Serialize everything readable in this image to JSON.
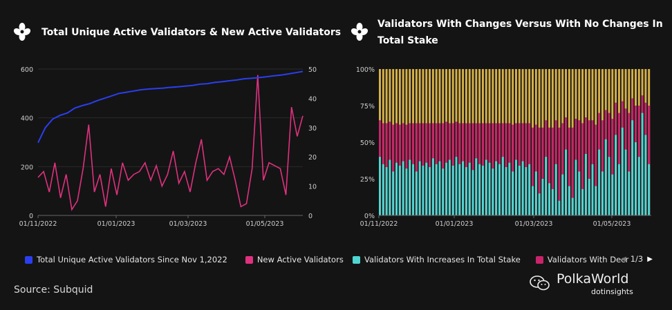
{
  "panels": [
    {
      "title": "Total Unique Active Validators & New Active Validators",
      "legend": [
        {
          "label": "Total Unique Active Validators Since Nov 1,2022",
          "color": "#2b3ff0"
        },
        {
          "label": "New Active Validators",
          "color": "#e0317f"
        }
      ]
    },
    {
      "title_line1": "Validators With Changes Versus With No Changes In",
      "title_line2": "Total Stake",
      "legend": [
        {
          "label": "Validators With Increases In Total Stake",
          "color": "#4fd6d2"
        },
        {
          "label": "Validators With Decr",
          "color": "#c8246a"
        }
      ],
      "pager": "1/3"
    }
  ],
  "source": "Source: Subquid",
  "watermark": {
    "main": "PolkaWorld",
    "sub": "dotinsights"
  },
  "chart_data": [
    {
      "type": "line",
      "x_ticks": [
        "01/11/2022",
        "01/01/2023",
        "01/03/2023",
        "01/05/2023"
      ],
      "y_left": {
        "ticks": [
          "0",
          "200",
          "400",
          "600"
        ],
        "ylim": [
          0,
          600
        ]
      },
      "y_right": {
        "ticks": [
          "0",
          "10",
          "20",
          "30",
          "40",
          "50"
        ],
        "ylim": [
          0,
          50
        ]
      },
      "series": [
        {
          "name": "Total Unique Active Validators Since Nov 1,2022",
          "axis": "left",
          "color": "#2b3ff0",
          "values": [
            298,
            360,
            395,
            410,
            420,
            440,
            450,
            458,
            470,
            480,
            490,
            500,
            505,
            510,
            515,
            518,
            520,
            522,
            525,
            527,
            530,
            533,
            538,
            540,
            545,
            548,
            552,
            555,
            560,
            562,
            565,
            568,
            572,
            575,
            580,
            585,
            590
          ]
        },
        {
          "name": "New Active Validators",
          "axis": "right",
          "color": "#e0317f",
          "values": [
            13,
            15,
            8,
            18,
            6,
            14,
            2,
            5,
            16,
            31,
            8,
            14,
            3,
            16,
            7,
            18,
            12,
            14,
            15,
            18,
            12,
            17,
            10,
            14,
            22,
            11,
            15,
            8,
            18,
            26,
            12,
            15,
            16,
            14,
            20,
            12,
            3,
            4,
            16,
            48,
            12,
            18,
            17,
            16,
            7,
            37,
            27,
            34
          ]
        }
      ]
    },
    {
      "type": "bar",
      "stacked": true,
      "x_ticks": [
        "01/11/2022",
        "01/01/2023",
        "01/03/2023",
        "01/05/2023"
      ],
      "y_ticks": [
        "0%",
        "25%",
        "50%",
        "75%",
        "100%"
      ],
      "ylim": [
        0,
        100
      ],
      "series": [
        {
          "name": "Validators With Increases In Total Stake",
          "color": "#4fd6d2"
        },
        {
          "name": "Validators With Decr",
          "color": "#c8246a"
        },
        {
          "name": "",
          "color": "#d6b14a"
        }
      ],
      "increase_pct": [
        40,
        35,
        33,
        38,
        30,
        36,
        34,
        37,
        32,
        38,
        35,
        30,
        37,
        34,
        36,
        33,
        39,
        35,
        37,
        32,
        36,
        38,
        34,
        40,
        35,
        37,
        33,
        36,
        31,
        39,
        35,
        34,
        38,
        36,
        32,
        37,
        35,
        40,
        33,
        36,
        30,
        38,
        34,
        37,
        33,
        35,
        20,
        30,
        15,
        25,
        40,
        22,
        18,
        35,
        10,
        28,
        45,
        20,
        12,
        38,
        30,
        18,
        42,
        25,
        35,
        20,
        45,
        30,
        52,
        40,
        28,
        55,
        35,
        60,
        45,
        30,
        65,
        50,
        40,
        70,
        55,
        35
      ],
      "decrease_pct": [
        25,
        28,
        30,
        26,
        32,
        27,
        28,
        26,
        30,
        25,
        28,
        33,
        26,
        29,
        27,
        30,
        24,
        28,
        26,
        31,
        28,
        25,
        29,
        24,
        28,
        26,
        30,
        27,
        32,
        24,
        28,
        29,
        25,
        27,
        31,
        26,
        28,
        23,
        30,
        27,
        32,
        25,
        29,
        26,
        30,
        28,
        40,
        32,
        45,
        35,
        25,
        38,
        42,
        30,
        50,
        35,
        22,
        40,
        48,
        28,
        35,
        45,
        25,
        40,
        30,
        42,
        25,
        35,
        20,
        30,
        38,
        22,
        35,
        18,
        28,
        40,
        15,
        25,
        35,
        12,
        22,
        40
      ]
    }
  ]
}
